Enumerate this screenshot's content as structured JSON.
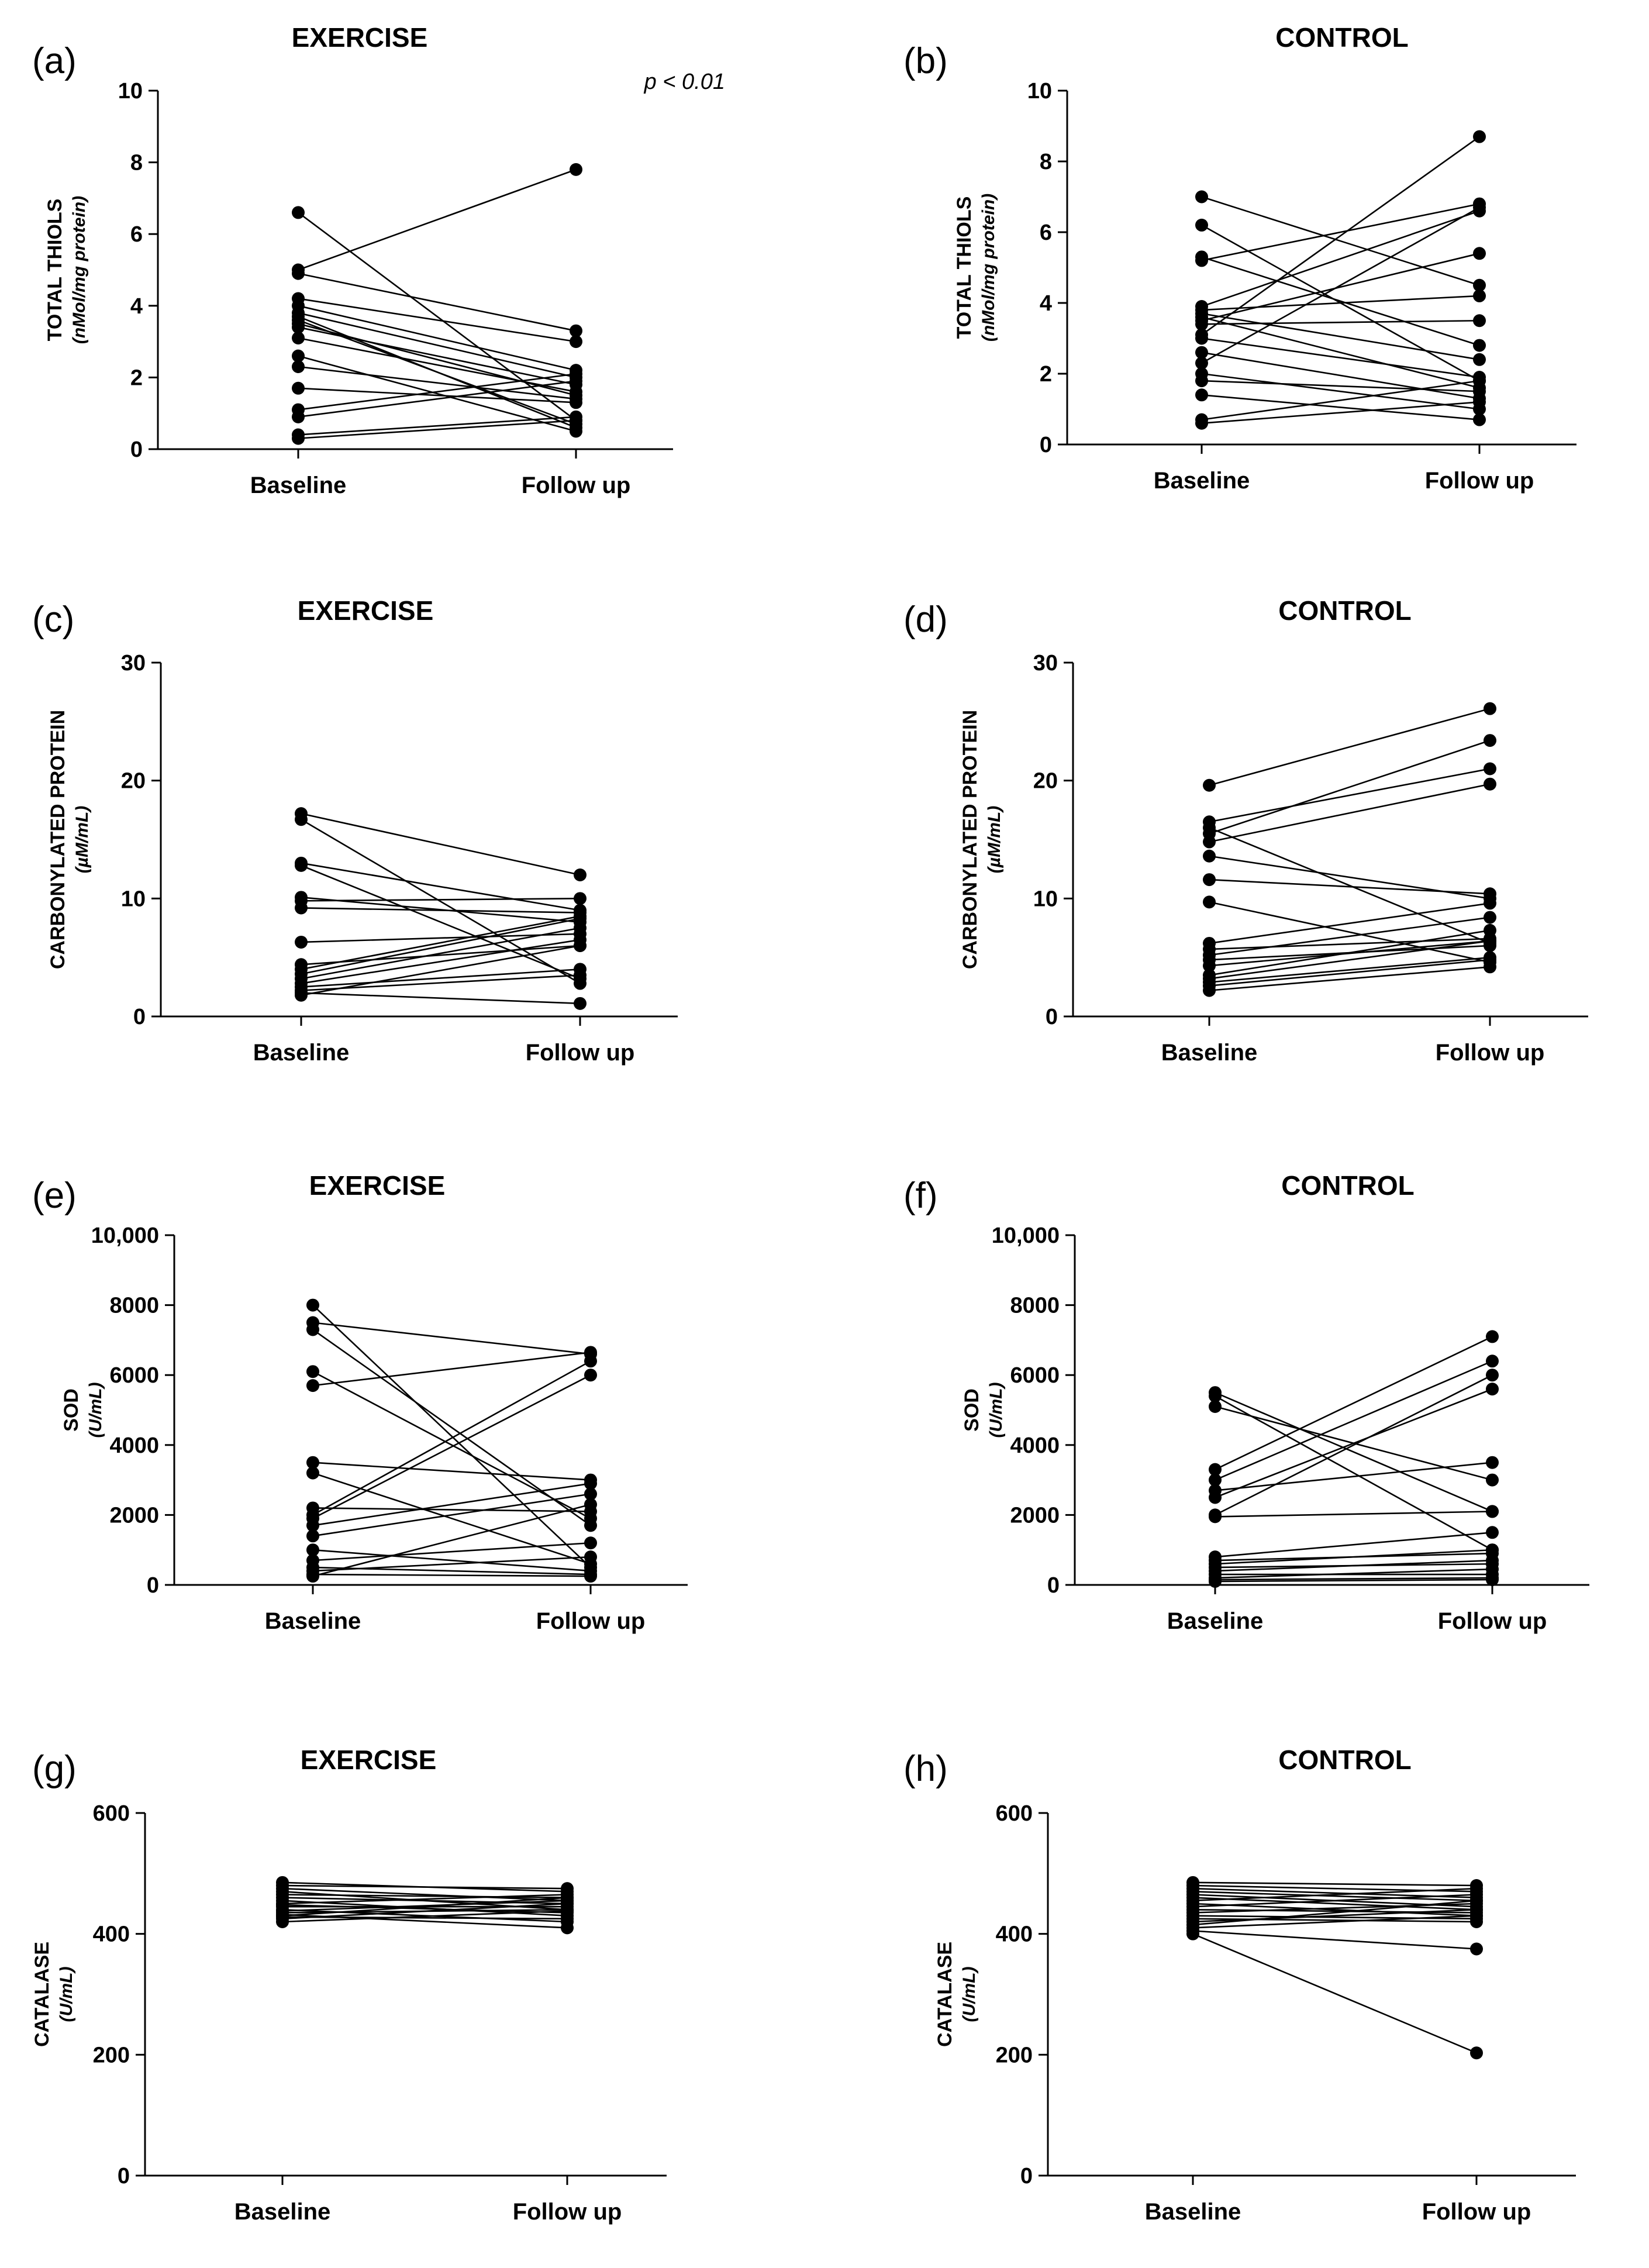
{
  "chart_data": [
    {
      "panel": "(a)",
      "title": "EXERCISE",
      "type": "line",
      "ylabel": "TOTAL THIOLS",
      "ylabel_unit": "(nMol/mg protein)",
      "ylim": [
        0,
        10
      ],
      "yticks": [
        0,
        2,
        4,
        6,
        8,
        10
      ],
      "yticklabels": [
        "0",
        "2",
        "4",
        "6",
        "8",
        "10"
      ],
      "categories": [
        "Baseline",
        "Follow up"
      ],
      "annotation": "p < 0.01",
      "pairs": [
        [
          6.6,
          0.8
        ],
        [
          5.0,
          7.8
        ],
        [
          4.9,
          3.3
        ],
        [
          4.2,
          3.0
        ],
        [
          4.0,
          2.2
        ],
        [
          3.8,
          2.0
        ],
        [
          3.7,
          0.6
        ],
        [
          3.6,
          0.7
        ],
        [
          3.5,
          1.5
        ],
        [
          3.4,
          1.8
        ],
        [
          3.1,
          1.6
        ],
        [
          2.6,
          0.5
        ],
        [
          2.3,
          1.4
        ],
        [
          1.7,
          1.3
        ],
        [
          1.1,
          2.1
        ],
        [
          0.9,
          1.9
        ],
        [
          0.4,
          0.9
        ],
        [
          0.3,
          0.8
        ]
      ]
    },
    {
      "panel": "(b)",
      "title": "CONTROL",
      "type": "line",
      "ylabel": "TOTAL THIOLS",
      "ylabel_unit": "(nMol/mg protein)",
      "ylim": [
        0,
        10
      ],
      "yticks": [
        0,
        2,
        4,
        6,
        8,
        10
      ],
      "yticklabels": [
        "0",
        "2",
        "4",
        "6",
        "8",
        "10"
      ],
      "categories": [
        "Baseline",
        "Follow up"
      ],
      "pairs": [
        [
          7.0,
          4.5
        ],
        [
          6.2,
          1.8
        ],
        [
          5.3,
          2.8
        ],
        [
          5.2,
          6.8
        ],
        [
          3.9,
          6.6
        ],
        [
          3.8,
          4.2
        ],
        [
          3.7,
          2.4
        ],
        [
          3.6,
          1.6
        ],
        [
          3.5,
          5.4
        ],
        [
          3.4,
          3.5
        ],
        [
          3.1,
          8.7
        ],
        [
          3.0,
          1.9
        ],
        [
          2.6,
          1.3
        ],
        [
          2.3,
          6.7
        ],
        [
          2.0,
          1.0
        ],
        [
          1.8,
          1.5
        ],
        [
          1.4,
          0.7
        ],
        [
          0.7,
          1.8
        ],
        [
          0.6,
          1.2
        ]
      ]
    },
    {
      "panel": "(c)",
      "title": "EXERCISE",
      "type": "line",
      "ylabel": "CARBONYLATED PROTEIN",
      "ylabel_unit": "(µM/mL)",
      "ylim": [
        0,
        30
      ],
      "yticks": [
        0,
        10,
        20,
        30
      ],
      "yticklabels": [
        "0",
        "10",
        "20",
        "30"
      ],
      "categories": [
        "Baseline",
        "Follow up"
      ],
      "pairs": [
        [
          17.2,
          12.0
        ],
        [
          16.7,
          2.8
        ],
        [
          13.0,
          9.0
        ],
        [
          12.8,
          3.2
        ],
        [
          10.1,
          8.0
        ],
        [
          9.8,
          10.0
        ],
        [
          9.2,
          8.8
        ],
        [
          6.3,
          7.0
        ],
        [
          4.4,
          6.0
        ],
        [
          4.0,
          8.5
        ],
        [
          3.6,
          8.3
        ],
        [
          3.2,
          7.5
        ],
        [
          2.8,
          6.5
        ],
        [
          2.5,
          4.0
        ],
        [
          2.2,
          3.5
        ],
        [
          2.0,
          1.1
        ],
        [
          1.8,
          6.0
        ]
      ]
    },
    {
      "panel": "(d)",
      "title": "CONTROL",
      "type": "line",
      "ylabel": "CARBONYLATED PROTEIN",
      "ylabel_unit": "(µM/mL)",
      "ylim": [
        0,
        30
      ],
      "yticks": [
        0,
        10,
        20,
        30
      ],
      "yticklabels": [
        "0",
        "10",
        "20",
        "30"
      ],
      "categories": [
        "Baseline",
        "Follow up"
      ],
      "pairs": [
        [
          19.6,
          26.1
        ],
        [
          16.5,
          21.0
        ],
        [
          16.0,
          6.2
        ],
        [
          15.5,
          23.4
        ],
        [
          14.8,
          19.7
        ],
        [
          13.6,
          10.0
        ],
        [
          11.6,
          10.4
        ],
        [
          9.7,
          4.6
        ],
        [
          6.2,
          9.6
        ],
        [
          5.7,
          6.6
        ],
        [
          5.2,
          8.4
        ],
        [
          4.8,
          6.0
        ],
        [
          4.3,
          6.4
        ],
        [
          3.5,
          7.3
        ],
        [
          3.2,
          6.4
        ],
        [
          2.9,
          5.0
        ],
        [
          2.6,
          4.8
        ],
        [
          2.2,
          4.2
        ]
      ]
    },
    {
      "panel": "(e)",
      "title": "EXERCISE",
      "type": "line",
      "ylabel": "SOD",
      "ylabel_unit": "(U/mL)",
      "ylim": [
        0,
        10000
      ],
      "yticks": [
        0,
        2000,
        4000,
        6000,
        8000,
        10000
      ],
      "yticklabels": [
        "0",
        "2000",
        "4000",
        "6000",
        "8000",
        "10,000"
      ],
      "categories": [
        "Baseline",
        "Follow up"
      ],
      "pairs": [
        [
          8000,
          500
        ],
        [
          7500,
          6600
        ],
        [
          7300,
          1700
        ],
        [
          6100,
          1900
        ],
        [
          5700,
          6650
        ],
        [
          3500,
          3000
        ],
        [
          3200,
          600
        ],
        [
          2200,
          2100
        ],
        [
          2000,
          6400
        ],
        [
          1900,
          6000
        ],
        [
          1700,
          2900
        ],
        [
          1400,
          2600
        ],
        [
          1000,
          400
        ],
        [
          700,
          1200
        ],
        [
          500,
          300
        ],
        [
          400,
          800
        ],
        [
          300,
          250
        ],
        [
          250,
          2300
        ]
      ]
    },
    {
      "panel": "(f)",
      "title": "CONTROL",
      "type": "line",
      "ylabel": "SOD",
      "ylabel_unit": "(U/mL)",
      "ylim": [
        0,
        10000
      ],
      "yticks": [
        0,
        2000,
        4000,
        6000,
        8000,
        10000
      ],
      "yticklabels": [
        "0",
        "2000",
        "4000",
        "6000",
        "8000",
        "10,000"
      ],
      "categories": [
        "Baseline",
        "Follow up"
      ],
      "pairs": [
        [
          5500,
          2100
        ],
        [
          5400,
          1000
        ],
        [
          5100,
          3000
        ],
        [
          3300,
          7100
        ],
        [
          3000,
          6400
        ],
        [
          2700,
          3500
        ],
        [
          2500,
          5600
        ],
        [
          2000,
          6000
        ],
        [
          1950,
          2100
        ],
        [
          800,
          1500
        ],
        [
          700,
          900
        ],
        [
          600,
          1000
        ],
        [
          500,
          600
        ],
        [
          400,
          700
        ],
        [
          300,
          300
        ],
        [
          200,
          450
        ],
        [
          150,
          200
        ],
        [
          100,
          150
        ]
      ]
    },
    {
      "panel": "(g)",
      "title": "EXERCISE",
      "type": "line",
      "ylabel": "CATALASE",
      "ylabel_unit": "(U/mL)",
      "ylim": [
        0,
        600
      ],
      "yticks": [
        0,
        200,
        400,
        600
      ],
      "yticklabels": [
        "0",
        "200",
        "400",
        "600"
      ],
      "categories": [
        "Baseline",
        "Follow up"
      ],
      "pairs": [
        [
          485,
          470
        ],
        [
          480,
          475
        ],
        [
          475,
          455
        ],
        [
          470,
          440
        ],
        [
          465,
          460
        ],
        [
          460,
          450
        ],
        [
          455,
          430
        ],
        [
          450,
          465
        ],
        [
          448,
          435
        ],
        [
          445,
          445
        ],
        [
          440,
          420
        ],
        [
          438,
          455
        ],
        [
          435,
          440
        ],
        [
          432,
          410
        ],
        [
          430,
          460
        ],
        [
          428,
          425
        ],
        [
          425,
          450
        ],
        [
          420,
          438
        ]
      ]
    },
    {
      "panel": "(h)",
      "title": "CONTROL",
      "type": "line",
      "ylabel": "CATALASE",
      "ylabel_unit": "(U/mL)",
      "ylim": [
        0,
        600
      ],
      "yticks": [
        0,
        200,
        400,
        600
      ],
      "yticklabels": [
        "0",
        "200",
        "400",
        "600"
      ],
      "categories": [
        "Baseline",
        "Follow up"
      ],
      "pairs": [
        [
          485,
          480
        ],
        [
          480,
          470
        ],
        [
          475,
          460
        ],
        [
          470,
          455
        ],
        [
          465,
          445
        ],
        [
          460,
          440
        ],
        [
          455,
          475
        ],
        [
          450,
          430
        ],
        [
          445,
          465
        ],
        [
          440,
          435
        ],
        [
          435,
          450
        ],
        [
          430,
          425
        ],
        [
          425,
          420
        ],
        [
          420,
          440
        ],
        [
          415,
          455
        ],
        [
          410,
          430
        ],
        [
          405,
          375
        ],
        [
          400,
          203
        ]
      ]
    }
  ]
}
